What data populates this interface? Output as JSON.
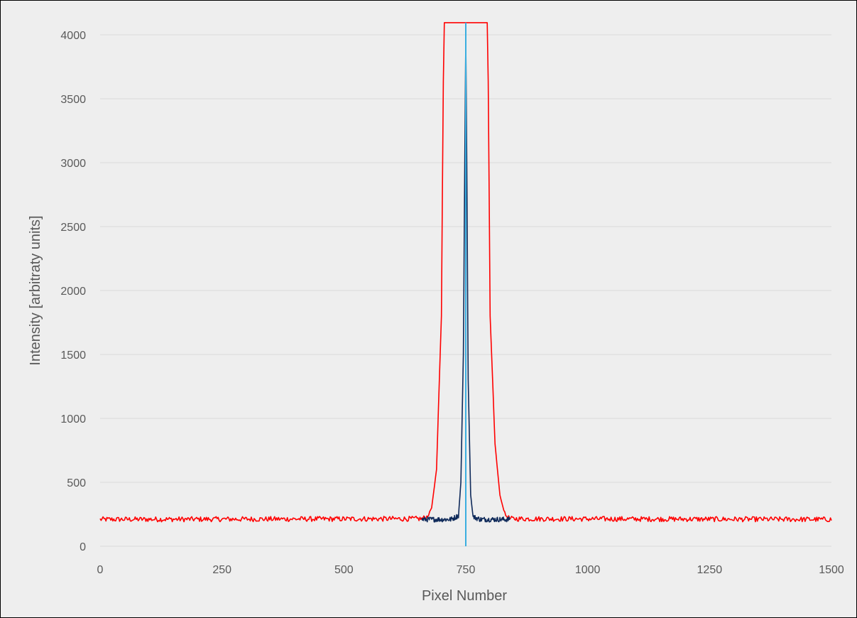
{
  "chart_data": {
    "type": "line",
    "title": "",
    "xlabel": "Pixel Number",
    "ylabel": "Intensity [arbitraty units]",
    "xlim": [
      0,
      1500
    ],
    "ylim": [
      0,
      4000
    ],
    "x_ticks": [
      "0",
      "250",
      "500",
      "750",
      "1000",
      "1250",
      "1500"
    ],
    "y_ticks": [
      "0",
      "500",
      "1000",
      "1500",
      "2000",
      "2500",
      "3000",
      "3500",
      "4000"
    ],
    "grid": "horizontal",
    "legend": "none",
    "baseline_level": 210,
    "series": [
      {
        "color": "#ff0000",
        "x": [
          0,
          660,
          670,
          680,
          690,
          700,
          705,
          710,
          790,
          795,
          800,
          810,
          820,
          830,
          840,
          1500
        ],
        "y": [
          210,
          215,
          230,
          300,
          600,
          1800,
          4095,
          4095,
          4095,
          4095,
          1800,
          800,
          400,
          250,
          215,
          210
        ]
      },
      {
        "color": "#0f2a5a",
        "x": [
          660,
          720,
          735,
          740,
          745,
          748,
          750,
          752,
          755,
          760,
          765,
          780,
          840
        ],
        "y": [
          210,
          210,
          240,
          500,
          1500,
          3000,
          3980,
          3000,
          1300,
          400,
          230,
          210,
          210
        ]
      },
      {
        "color": "#3aaee0",
        "x": [
          750,
          750
        ],
        "y": [
          0,
          4095
        ]
      }
    ]
  }
}
